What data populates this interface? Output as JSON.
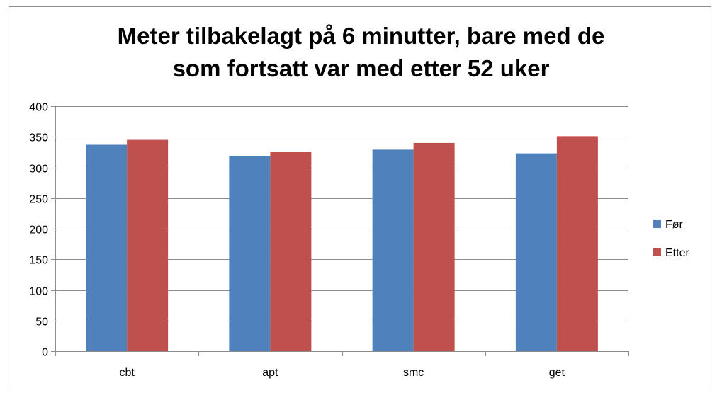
{
  "chart_data": {
    "type": "bar",
    "title_lines": [
      "Meter tilbakelagt på 6 minutter, bare med de",
      "som fortsatt var med etter 52 uker"
    ],
    "categories": [
      "cbt",
      "apt",
      "smc",
      "get"
    ],
    "series": [
      {
        "name": "Før",
        "color": "#4f81bd",
        "values": [
          337,
          319,
          329,
          323
        ]
      },
      {
        "name": "Etter",
        "color": "#c0504d",
        "values": [
          345,
          326,
          340,
          351
        ]
      }
    ],
    "ylim": [
      0,
      400
    ],
    "yticks": [
      0,
      50,
      100,
      150,
      200,
      250,
      300,
      350,
      400
    ],
    "grid": true,
    "legend_position": "right"
  }
}
